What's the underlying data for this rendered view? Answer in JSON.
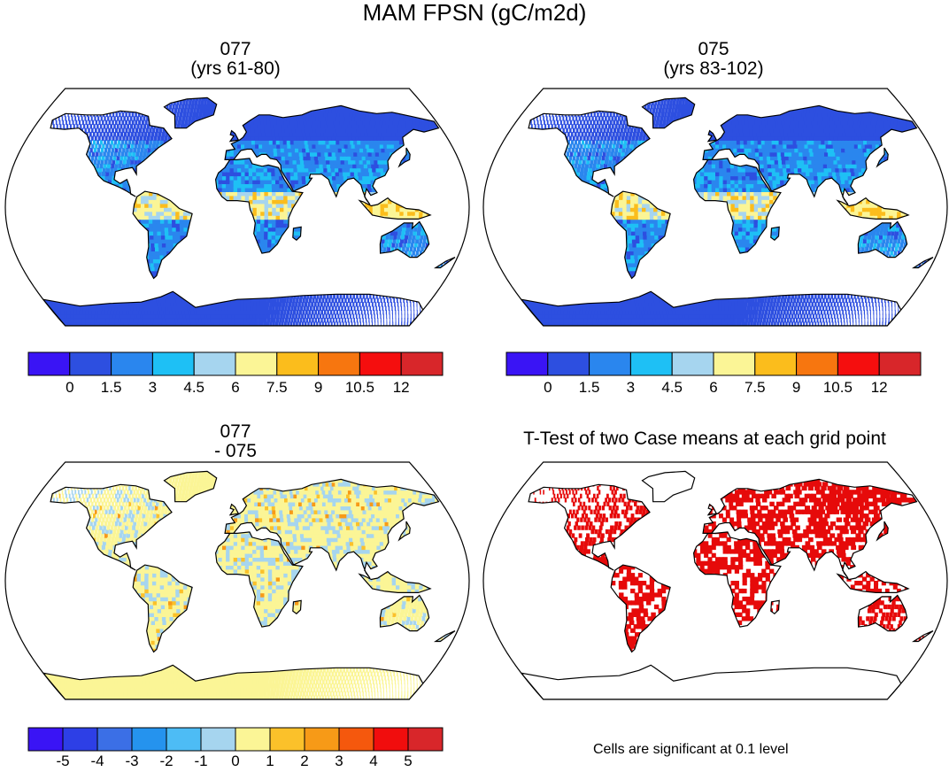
{
  "figure": {
    "title": "MAM FPSN (gC/m2d)"
  },
  "panels": [
    {
      "id": "077",
      "title_line1": "077",
      "title_line2": "(yrs 61-80)",
      "palette": "abs"
    },
    {
      "id": "075",
      "title_line1": "075",
      "title_line2": "(yrs 83-102)",
      "palette": "abs"
    },
    {
      "id": "diff",
      "title_line1": "077",
      "title_line2": "- 075",
      "palette": "diff"
    },
    {
      "id": "ttest",
      "title_line1": "T-Test of two Case means at each grid point",
      "palette": "sig"
    }
  ],
  "colorbars": {
    "abs": {
      "colors": [
        "#3a14f5",
        "#2d4fe0",
        "#2a86ee",
        "#1ec0f5",
        "#a6d5ef",
        "#fbf596",
        "#fbbd1c",
        "#f7760f",
        "#f50e0e",
        "#d8262a"
      ],
      "labels": [
        "0",
        "1.5",
        "3",
        "4.5",
        "6",
        "7.5",
        "9",
        "10.5",
        "12"
      ]
    },
    "diff": {
      "colors": [
        "#3a14f5",
        "#2d3fe6",
        "#3b6fe6",
        "#2593ee",
        "#4dbcf5",
        "#a6d5ef",
        "#fbf596",
        "#fbc12a",
        "#f79a17",
        "#f5580d",
        "#f10d0d",
        "#d8262a"
      ],
      "labels": [
        "-5",
        "-4",
        "-3",
        "-2",
        "-1",
        "0",
        "1",
        "2",
        "3",
        "4",
        "5"
      ]
    }
  },
  "significance_note": "Cells are significant at 0.1 level"
}
